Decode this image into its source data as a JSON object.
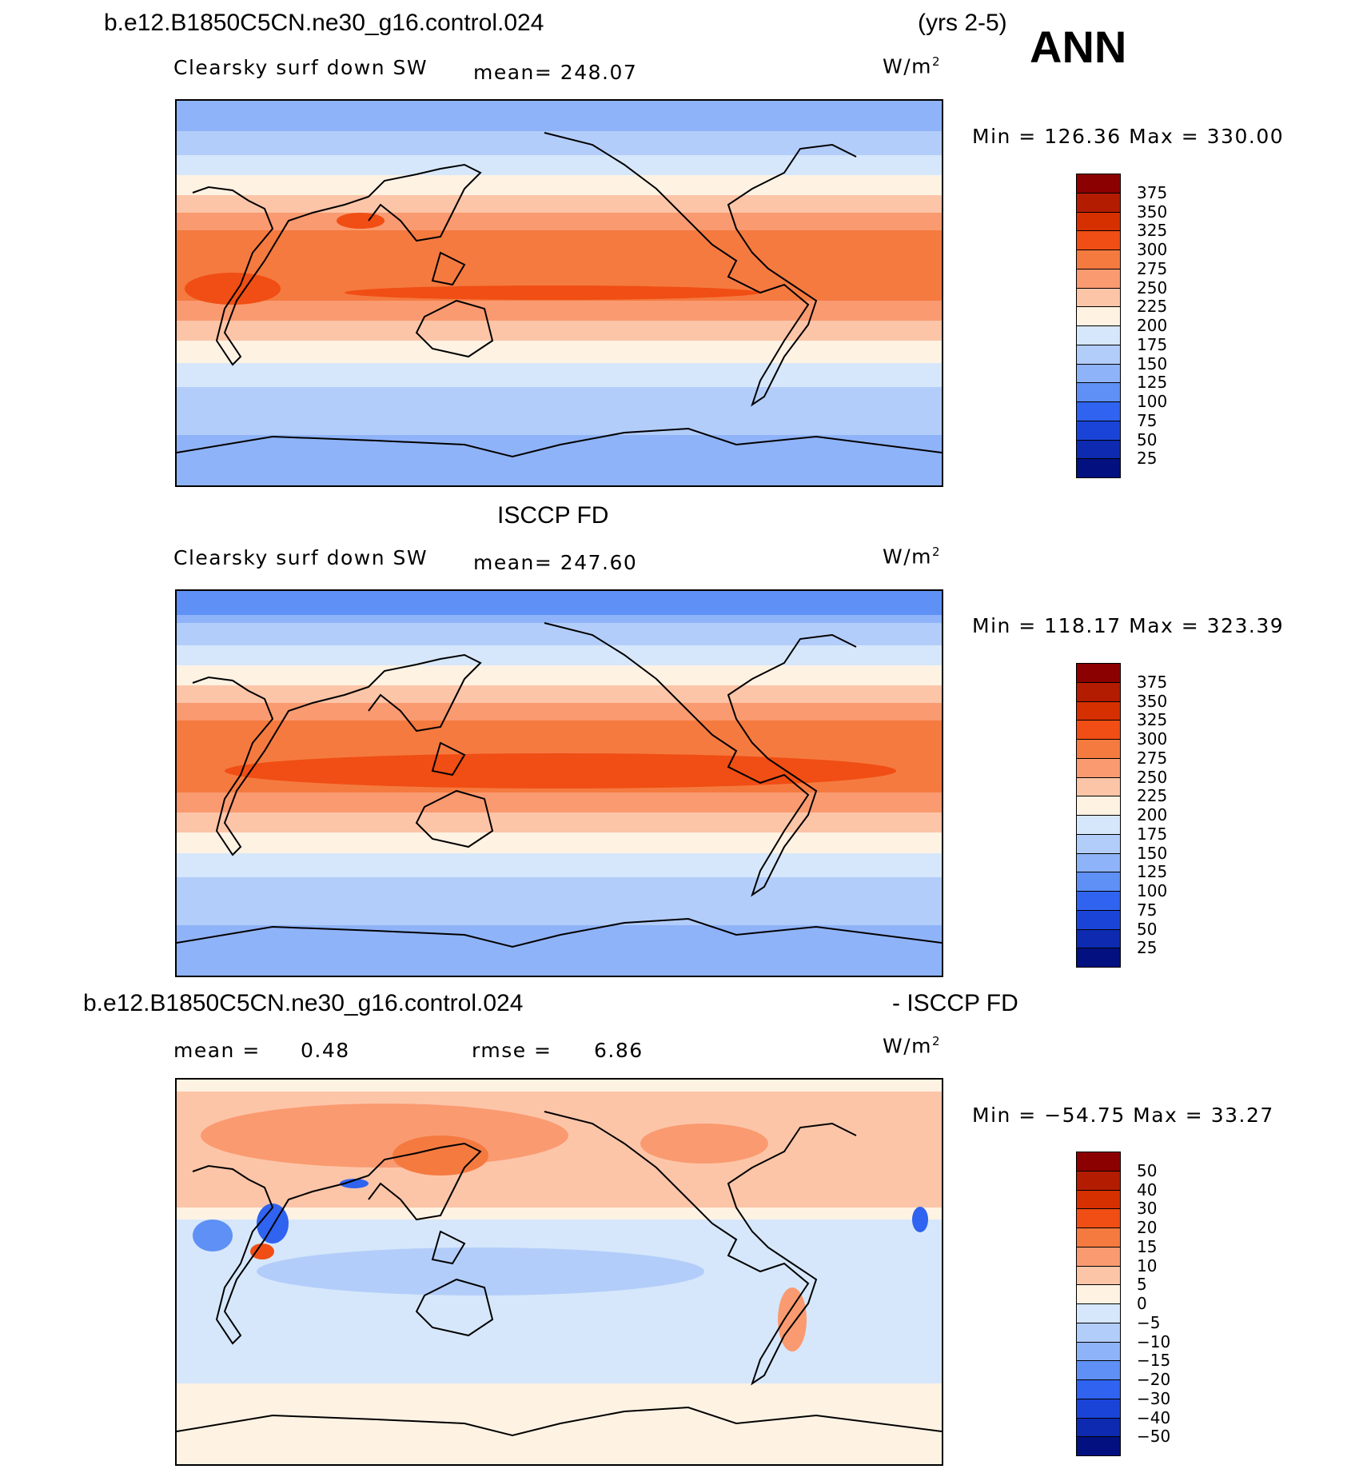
{
  "header": {
    "case_name": "b.e12.B1850C5CN.ne30_g16.control.024",
    "years": "(yrs 2-5)",
    "season": "ANN"
  },
  "panels": [
    {
      "variable": "Clearsky surf down SW",
      "stat_text": "mean=  248.07",
      "units": "W/m",
      "units_sup": "2",
      "minmax": "Min  =  126.36  Max  =  330.00",
      "colorbar": {
        "colors": [
          "#8b0000",
          "#b31c00",
          "#d62f00",
          "#f04e14",
          "#f57a40",
          "#fa9a70",
          "#fdc5a8",
          "#fef2e3",
          "#d6e7fb",
          "#b3cdfa",
          "#8fb3f8",
          "#5e90f5",
          "#2f63f0",
          "#1a44d8",
          "#0d2ab0",
          "#03107f"
        ],
        "labels": [
          "375",
          "350",
          "325",
          "300",
          "275",
          "250",
          "225",
          "200",
          "175",
          "150",
          "125",
          "100",
          "75",
          "50",
          "25"
        ]
      }
    },
    {
      "title": "ISCCP FD",
      "variable": "Clearsky surf down SW",
      "stat_text": "mean=  247.60",
      "units": "W/m",
      "units_sup": "2",
      "minmax": "Min  =  118.17  Max  =  323.39",
      "colorbar": {
        "colors": [
          "#8b0000",
          "#b31c00",
          "#d62f00",
          "#f04e14",
          "#f57a40",
          "#fa9a70",
          "#fdc5a8",
          "#fef2e3",
          "#d6e7fb",
          "#b3cdfa",
          "#8fb3f8",
          "#5e90f5",
          "#2f63f0",
          "#1a44d8",
          "#0d2ab0",
          "#03107f"
        ],
        "labels": [
          "375",
          "350",
          "325",
          "300",
          "275",
          "250",
          "225",
          "200",
          "175",
          "150",
          "125",
          "100",
          "75",
          "50",
          "25"
        ]
      }
    },
    {
      "title_left": "b.e12.B1850C5CN.ne30_g16.control.024",
      "title_right": "- ISCCP FD",
      "mean_label": "mean  =",
      "mean_value": "0.48",
      "rmse_label": "rmse  =",
      "rmse_value": "6.86",
      "units": "W/m",
      "units_sup": "2",
      "minmax": "Min  =  −54.75  Max  =    33.27",
      "colorbar": {
        "colors": [
          "#8b0000",
          "#b31c00",
          "#d62f00",
          "#f04e14",
          "#f57a40",
          "#fa9a70",
          "#fdc5a8",
          "#fef2e3",
          "#d6e7fb",
          "#b3cdfa",
          "#8fb3f8",
          "#5e90f5",
          "#2f63f0",
          "#1a44d8",
          "#0d2ab0",
          "#03107f"
        ],
        "labels": [
          "50",
          "40",
          "30",
          "20",
          "15",
          "10",
          "5",
          "0",
          "−5",
          "−10",
          "−15",
          "−20",
          "−30",
          "−40",
          "−50"
        ]
      }
    }
  ]
}
